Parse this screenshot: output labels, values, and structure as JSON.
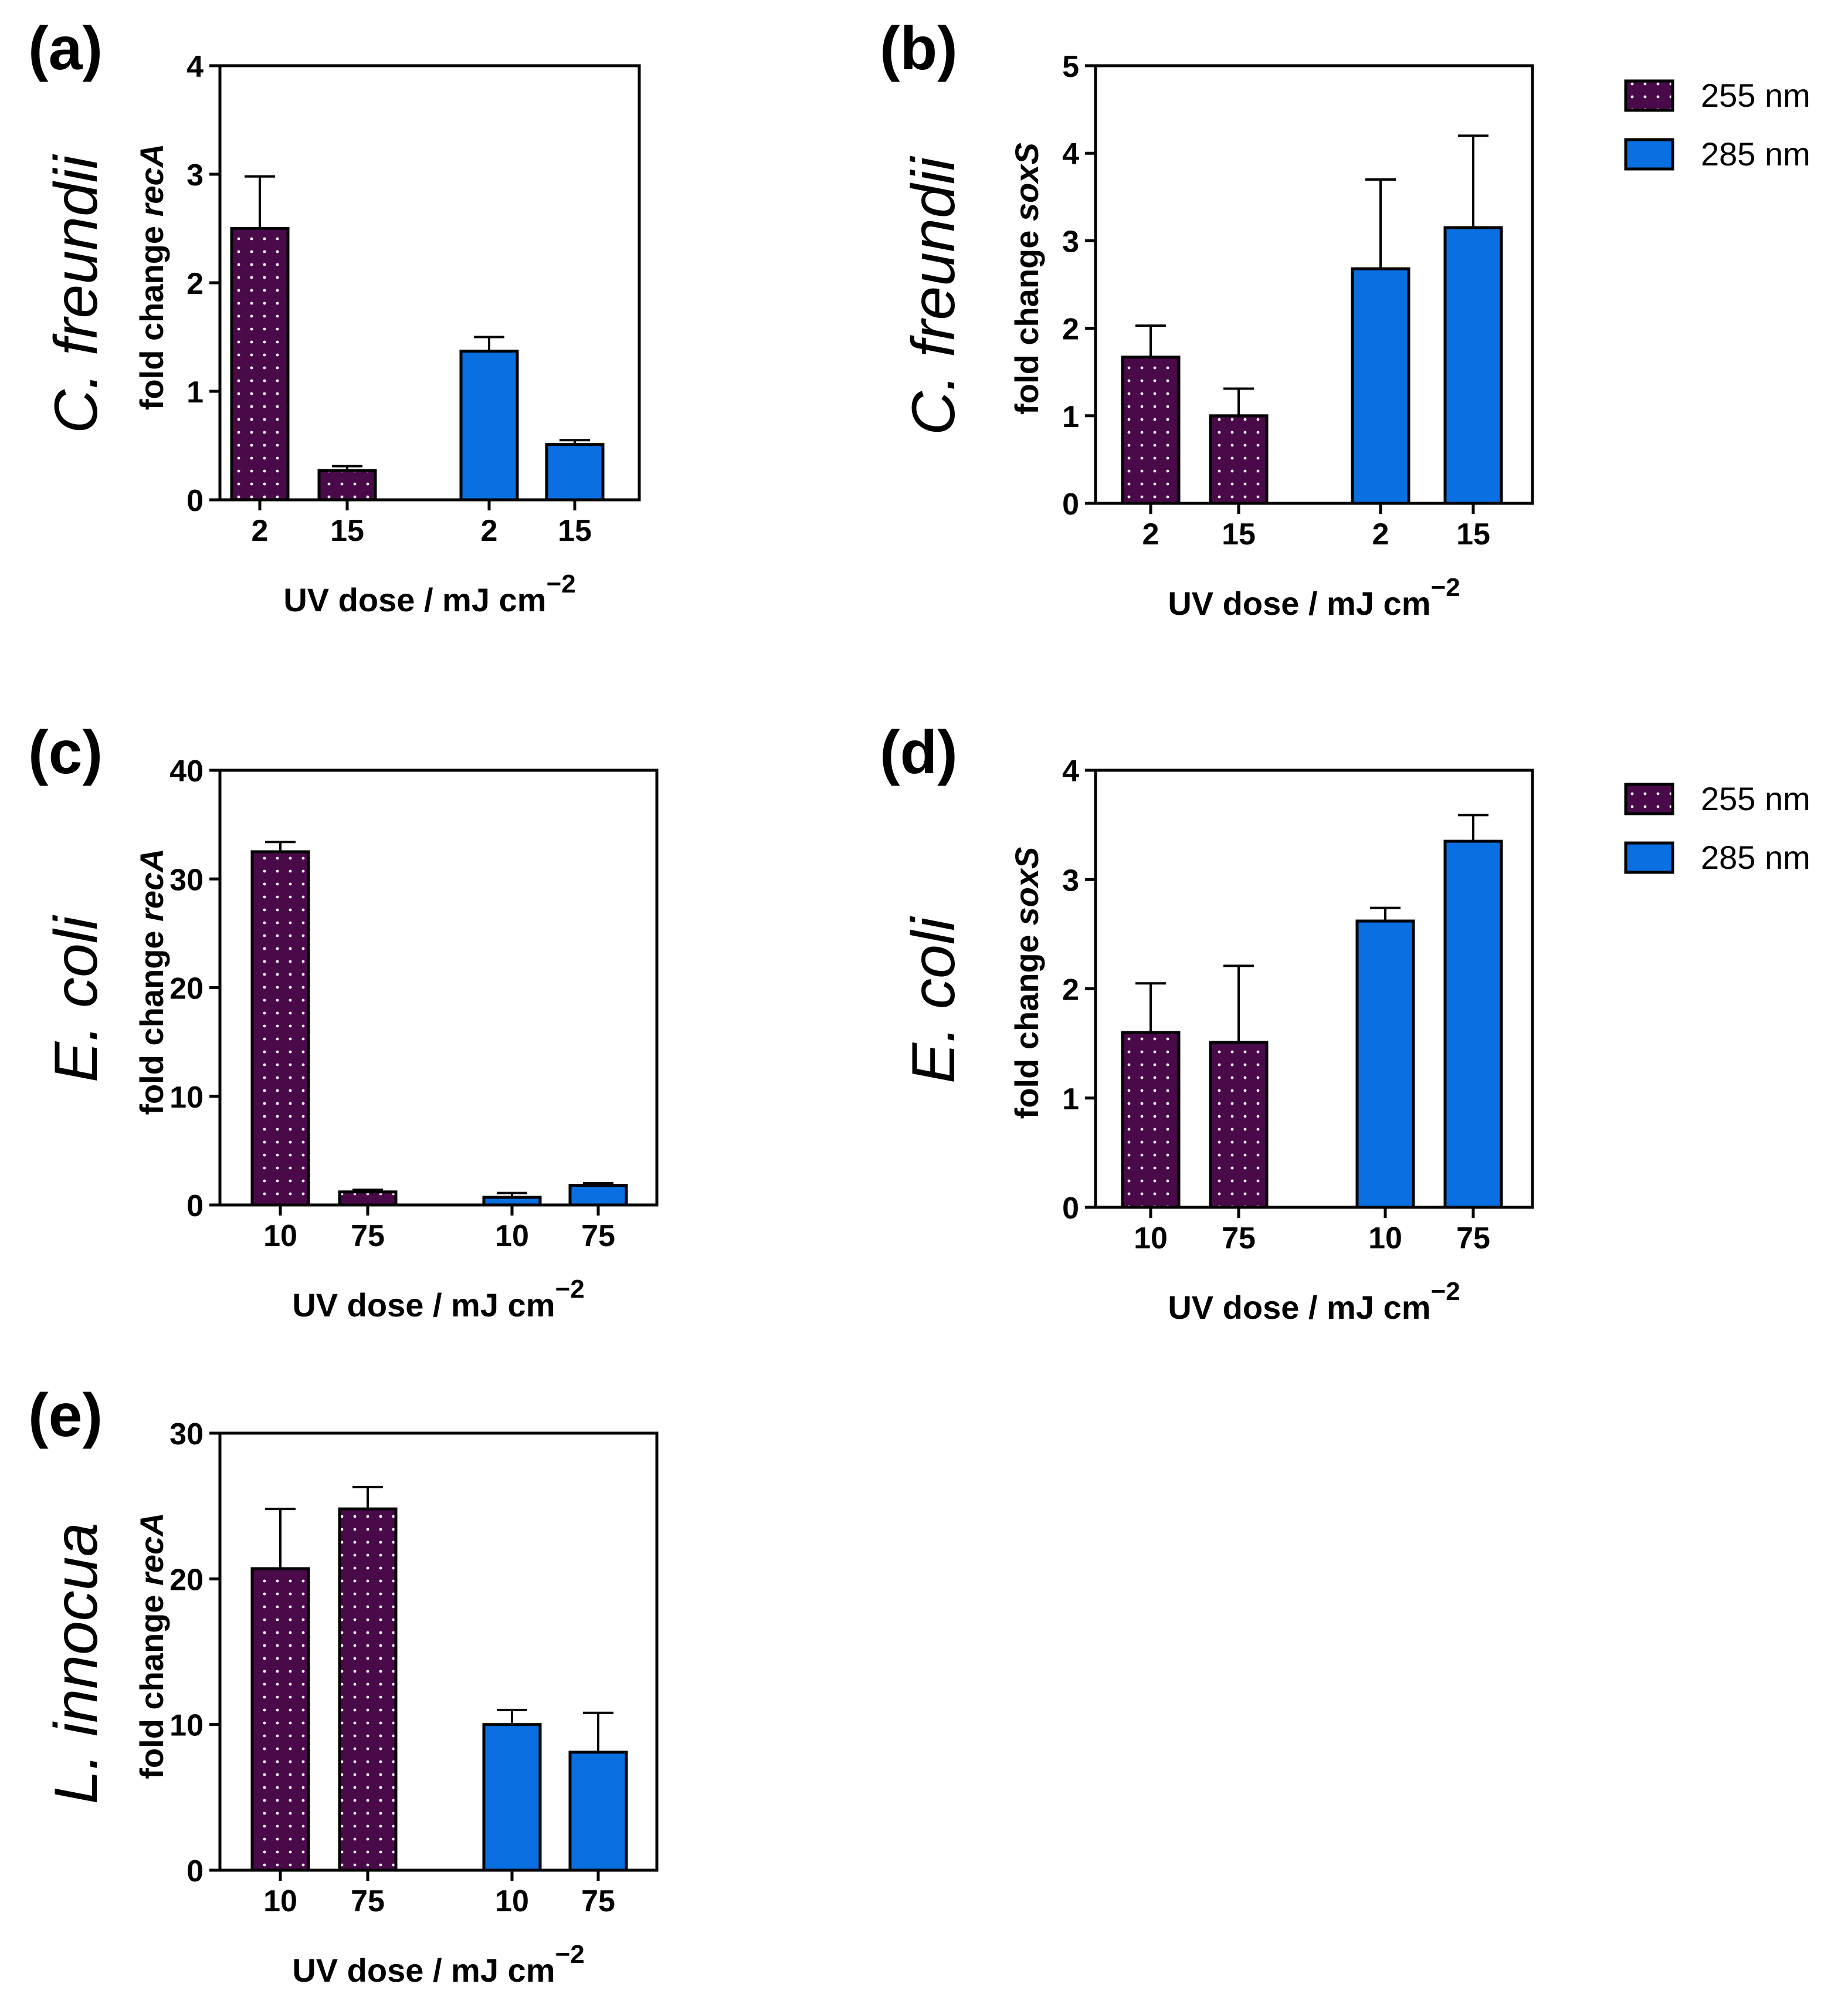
{
  "colors": {
    "s255_fill": "#4a0a4a",
    "s255_dot": "#ffffff",
    "s285_fill": "#0a6fe0",
    "axis": "#000000"
  },
  "legends": [
    {
      "items": [
        {
          "name": "255 nm",
          "pattern": "dots"
        },
        {
          "name": "285 nm",
          "pattern": "solid"
        }
      ]
    },
    {
      "items": [
        {
          "name": "255 nm",
          "pattern": "dots"
        },
        {
          "name": "285 nm",
          "pattern": "solid"
        }
      ]
    }
  ],
  "chart_data": [
    {
      "panel": "(a)",
      "type": "bar",
      "organism": "C. freundii",
      "ylabel_prefix": "fold change ",
      "ylabel_gene": "recA",
      "xlabel_main": "UV dose / mJ cm",
      "xlabel_sup": "−2",
      "ylim": [
        0,
        4
      ],
      "yticks": [
        "0",
        "1",
        "2",
        "3",
        "4"
      ],
      "ytick_values": [
        0,
        1,
        2,
        3,
        4
      ],
      "groups": [
        {
          "name": "255 nm",
          "categories": [
            "2",
            "15"
          ],
          "values": [
            2.5,
            0.27
          ],
          "errors": [
            0.48,
            0.04
          ]
        },
        {
          "name": "285 nm",
          "categories": [
            "2",
            "15"
          ],
          "values": [
            1.37,
            0.51
          ],
          "errors": [
            0.13,
            0.04
          ]
        }
      ]
    },
    {
      "panel": "(b)",
      "type": "bar",
      "organism": "C. freundii",
      "ylabel_prefix": "fold change ",
      "ylabel_gene": "soxS",
      "xlabel_main": "UV dose / mJ cm",
      "xlabel_sup": "−2",
      "ylim": [
        0,
        5
      ],
      "yticks": [
        "0",
        "1",
        "2",
        "3",
        "4",
        "5"
      ],
      "ytick_values": [
        0,
        1,
        2,
        3,
        4,
        5
      ],
      "groups": [
        {
          "name": "255 nm",
          "categories": [
            "2",
            "15"
          ],
          "values": [
            1.67,
            1.0
          ],
          "errors": [
            0.36,
            0.31
          ]
        },
        {
          "name": "285 nm",
          "categories": [
            "2",
            "15"
          ],
          "values": [
            2.68,
            3.15
          ],
          "errors": [
            1.02,
            1.05
          ]
        }
      ]
    },
    {
      "panel": "(c)",
      "type": "bar",
      "organism": "E. coli",
      "ylabel_prefix": "fold change ",
      "ylabel_gene": "recA",
      "xlabel_main": "UV dose / mJ cm",
      "xlabel_sup": "−2",
      "ylim": [
        0,
        40
      ],
      "yticks": [
        "0",
        "10",
        "20",
        "30",
        "40"
      ],
      "ytick_values": [
        0,
        10,
        20,
        30,
        40
      ],
      "groups": [
        {
          "name": "255 nm",
          "categories": [
            "10",
            "75"
          ],
          "values": [
            32.5,
            1.2
          ],
          "errors": [
            0.9,
            0.2
          ]
        },
        {
          "name": "285 nm",
          "categories": [
            "10",
            "75"
          ],
          "values": [
            0.7,
            1.8
          ],
          "errors": [
            0.4,
            0.2
          ]
        }
      ]
    },
    {
      "panel": "(d)",
      "type": "bar",
      "organism": "E. coli",
      "ylabel_prefix": "fold change ",
      "ylabel_gene": "soxS",
      "xlabel_main": "UV dose / mJ cm",
      "xlabel_sup": "−2",
      "ylim": [
        0,
        4
      ],
      "yticks": [
        "0",
        "1",
        "2",
        "3",
        "4"
      ],
      "ytick_values": [
        0,
        1,
        2,
        3,
        4
      ],
      "groups": [
        {
          "name": "255 nm",
          "categories": [
            "10",
            "75"
          ],
          "values": [
            1.6,
            1.51
          ],
          "errors": [
            0.45,
            0.7
          ]
        },
        {
          "name": "285 nm",
          "categories": [
            "10",
            "75"
          ],
          "values": [
            2.62,
            3.35
          ],
          "errors": [
            0.12,
            0.24
          ]
        }
      ]
    },
    {
      "panel": "(e)",
      "type": "bar",
      "organism": "L. innocua",
      "ylabel_prefix": "fold change ",
      "ylabel_gene": "recA",
      "xlabel_main": "UV dose / mJ cm",
      "xlabel_sup": "−2",
      "ylim": [
        0,
        30
      ],
      "yticks": [
        "0",
        "10",
        "20",
        "30"
      ],
      "ytick_values": [
        0,
        10,
        20,
        30
      ],
      "groups": [
        {
          "name": "255 nm",
          "categories": [
            "10",
            "75"
          ],
          "values": [
            20.7,
            24.8
          ],
          "errors": [
            4.1,
            1.5
          ]
        },
        {
          "name": "285 nm",
          "categories": [
            "10",
            "75"
          ],
          "values": [
            10.0,
            8.1
          ],
          "errors": [
            1.0,
            2.7
          ]
        }
      ]
    }
  ]
}
